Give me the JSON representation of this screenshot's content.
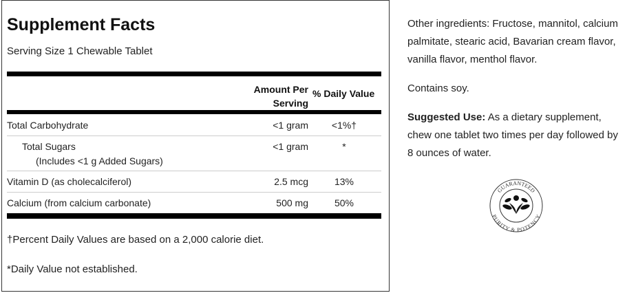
{
  "facts": {
    "title": "Supplement Facts",
    "serving_size": "Serving Size 1 Chewable Tablet",
    "header": {
      "amount": "Amount Per Serving",
      "amount_l1": "Amount Per",
      "amount_l2": "Serving",
      "dv": "% Daily Value"
    },
    "rows": [
      {
        "name": "Total Carbohydrate",
        "amount": "<1 gram",
        "dv": "<1%†"
      },
      {
        "name": "Total Sugars",
        "sub": "(Includes <1 g Added Sugars)",
        "amount": "<1 gram",
        "dv": "*"
      },
      {
        "name": "Vitamin D (as cholecalciferol)",
        "amount": "2.5 mcg",
        "dv": "13%"
      },
      {
        "name": "Calcium (from calcium carbonate)",
        "amount": "500 mg",
        "dv": "50%"
      }
    ],
    "footnote1": "†Percent Daily Values are based on a 2,000 calorie diet.",
    "footnote2": "*Daily Value not established."
  },
  "info": {
    "other_ingredients": "Other ingredients: Fructose, mannitol, calcium palmitate, stearic acid, Bavarian cream flavor, vanilla flavor, menthol flavor.",
    "contains": "Contains soy.",
    "suggested_label": "Suggested Use:",
    "suggested_text": " As a dietary supplement, chew one tablet two times per day followed by 8 ounces of water."
  },
  "seal": {
    "top": "GUARANTEED",
    "bottom": "PURITY & POTENCY"
  }
}
